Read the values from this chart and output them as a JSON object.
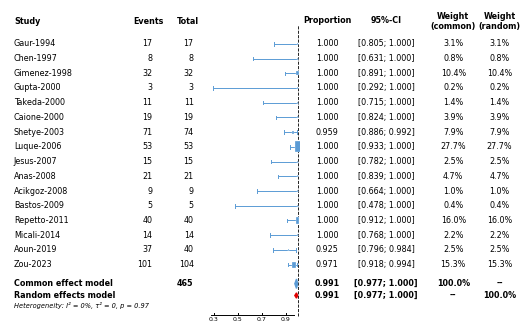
{
  "studies": [
    {
      "name": "Gaur-1994",
      "events": 17,
      "total": 17,
      "prop": 1.0,
      "ci_lo": 0.805,
      "ci_hi": 1.0,
      "w_common": "3.1%",
      "w_random": "3.1%"
    },
    {
      "name": "Chen-1997",
      "events": 8,
      "total": 8,
      "prop": 1.0,
      "ci_lo": 0.631,
      "ci_hi": 1.0,
      "w_common": "0.8%",
      "w_random": "0.8%"
    },
    {
      "name": "Gimenez-1998",
      "events": 32,
      "total": 32,
      "prop": 1.0,
      "ci_lo": 0.891,
      "ci_hi": 1.0,
      "w_common": "10.4%",
      "w_random": "10.4%"
    },
    {
      "name": "Gupta-2000",
      "events": 3,
      "total": 3,
      "prop": 1.0,
      "ci_lo": 0.292,
      "ci_hi": 1.0,
      "w_common": "0.2%",
      "w_random": "0.2%"
    },
    {
      "name": "Takeda-2000",
      "events": 11,
      "total": 11,
      "prop": 1.0,
      "ci_lo": 0.715,
      "ci_hi": 1.0,
      "w_common": "1.4%",
      "w_random": "1.4%"
    },
    {
      "name": "Caione-2000",
      "events": 19,
      "total": 19,
      "prop": 1.0,
      "ci_lo": 0.824,
      "ci_hi": 1.0,
      "w_common": "3.9%",
      "w_random": "3.9%"
    },
    {
      "name": "Shetye-2003",
      "events": 71,
      "total": 74,
      "prop": 0.959,
      "ci_lo": 0.886,
      "ci_hi": 0.992,
      "w_common": "7.9%",
      "w_random": "7.9%"
    },
    {
      "name": "Luque-2006",
      "events": 53,
      "total": 53,
      "prop": 1.0,
      "ci_lo": 0.933,
      "ci_hi": 1.0,
      "w_common": "27.7%",
      "w_random": "27.7%"
    },
    {
      "name": "Jesus-2007",
      "events": 15,
      "total": 15,
      "prop": 1.0,
      "ci_lo": 0.782,
      "ci_hi": 1.0,
      "w_common": "2.5%",
      "w_random": "2.5%"
    },
    {
      "name": "Anas-2008",
      "events": 21,
      "total": 21,
      "prop": 1.0,
      "ci_lo": 0.839,
      "ci_hi": 1.0,
      "w_common": "4.7%",
      "w_random": "4.7%"
    },
    {
      "name": "Acikgoz-2008",
      "events": 9,
      "total": 9,
      "prop": 1.0,
      "ci_lo": 0.664,
      "ci_hi": 1.0,
      "w_common": "1.0%",
      "w_random": "1.0%"
    },
    {
      "name": "Bastos-2009",
      "events": 5,
      "total": 5,
      "prop": 1.0,
      "ci_lo": 0.478,
      "ci_hi": 1.0,
      "w_common": "0.4%",
      "w_random": "0.4%"
    },
    {
      "name": "Repetto-2011",
      "events": 40,
      "total": 40,
      "prop": 1.0,
      "ci_lo": 0.912,
      "ci_hi": 1.0,
      "w_common": "16.0%",
      "w_random": "16.0%"
    },
    {
      "name": "Micali-2014",
      "events": 14,
      "total": 14,
      "prop": 1.0,
      "ci_lo": 0.768,
      "ci_hi": 1.0,
      "w_common": "2.2%",
      "w_random": "2.2%"
    },
    {
      "name": "Aoun-2019",
      "events": 37,
      "total": 40,
      "prop": 0.925,
      "ci_lo": 0.796,
      "ci_hi": 0.984,
      "w_common": "2.5%",
      "w_random": "2.5%"
    },
    {
      "name": "Zou-2023",
      "events": 101,
      "total": 104,
      "prop": 0.971,
      "ci_lo": 0.918,
      "ci_hi": 0.994,
      "w_common": "15.3%",
      "w_random": "15.3%"
    }
  ],
  "common_effect": {
    "total": 465,
    "prop": 0.991,
    "ci_lo": 0.977,
    "ci_hi": 1.0,
    "w_common": "100.0%",
    "w_random": "--"
  },
  "random_effects": {
    "prop": 0.991,
    "ci_lo": 0.977,
    "ci_hi": 1.0,
    "w_common": "--",
    "w_random": "100.0%"
  },
  "heterogeneity": "Heterogeneity: I² = 0%, τ² = 0, p = 0.97",
  "x_min": 0.25,
  "x_max": 1.02,
  "x_ticks": [
    0.3,
    0.5,
    0.7,
    0.9
  ],
  "x_tick_labels": [
    "0.3",
    "0.5",
    "0.7",
    "0.9"
  ],
  "ci_color": "#5b9bd5",
  "box_color": "#5b9bd5",
  "diamond_color": "#5b9bd5",
  "random_diamond_color": "#e00000",
  "header_study": "Study",
  "header_events": "Events",
  "header_total": "Total",
  "header_proportion": "Proportion",
  "header_ci": "95%-CI",
  "header_w_common": "Weight\n(common)",
  "header_w_random": "Weight\n(random)"
}
